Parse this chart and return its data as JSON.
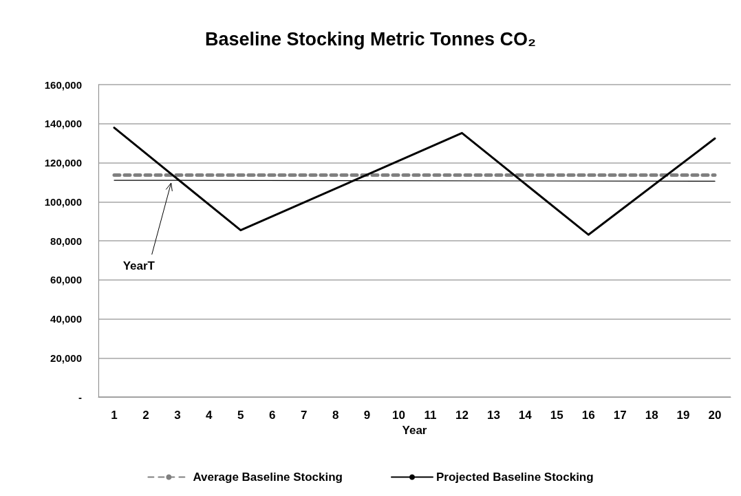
{
  "chart_data": {
    "type": "line",
    "title": "Baseline Stocking Metric Tonnes CO₂",
    "xlabel": "Year",
    "xlim": [
      0.5,
      20.5
    ],
    "xticks": [
      1,
      2,
      3,
      4,
      5,
      6,
      7,
      8,
      9,
      10,
      11,
      12,
      13,
      14,
      15,
      16,
      17,
      18,
      19,
      20
    ],
    "ylim": [
      0,
      160000
    ],
    "yticks": [
      {
        "value": 0,
        "label": "-"
      },
      {
        "value": 20000,
        "label": "20,000"
      },
      {
        "value": 40000,
        "label": "40,000"
      },
      {
        "value": 60000,
        "label": "60,000"
      },
      {
        "value": 80000,
        "label": "80,000"
      },
      {
        "value": 100000,
        "label": "100,000"
      },
      {
        "value": 120000,
        "label": "120,000"
      },
      {
        "value": 140000,
        "label": "140,000"
      },
      {
        "value": 160000,
        "label": "160,000"
      }
    ],
    "series": [
      {
        "name": "Average Baseline Stocking",
        "color": "#808080",
        "line_style": "dashed",
        "x": [
          1,
          20
        ],
        "values": [
          113700,
          113700
        ]
      },
      {
        "name": "Projected Baseline Stocking",
        "color": "#000000",
        "x": [
          1,
          5,
          12,
          16,
          20
        ],
        "values": [
          137900,
          85400,
          135200,
          83100,
          132400
        ]
      },
      {
        "color": "#000000",
        "x": [
          1,
          20
        ],
        "values": [
          111000,
          110500
        ]
      }
    ],
    "annotations": [
      {
        "text": "YearT",
        "x": 2.8,
        "y": 111000
      }
    ],
    "grid": "y",
    "legend": "bottom",
    "marker": "none"
  }
}
